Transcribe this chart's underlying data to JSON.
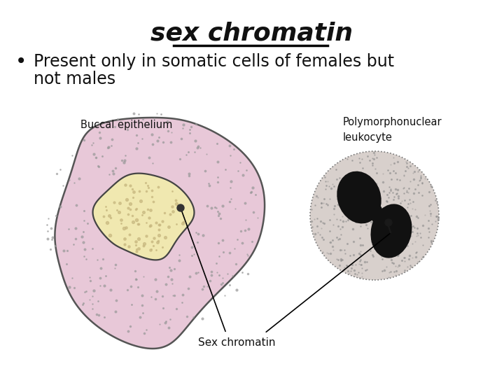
{
  "title": "sex chromatin",
  "bullet_text_line1": "Present only in somatic cells of females but",
  "bullet_text_line2": "not males",
  "label_buccal": "Buccal epithelium",
  "label_leukocyte_line1": "Polymorphonuclear",
  "label_leukocyte_line2": "leukocyte",
  "label_sex_chromatin": "Sex chromatin",
  "bg_color": "#ffffff",
  "cell_outer_color": "#e8c8d8",
  "cell_outer_edge": "#555555",
  "nucleus_color": "#f0e8b0",
  "nucleus_edge": "#444444",
  "leuko_bg_color": "#d8d0cc",
  "leuko_nucleus_color": "#111111",
  "leuko_circle_edge": "#777777"
}
